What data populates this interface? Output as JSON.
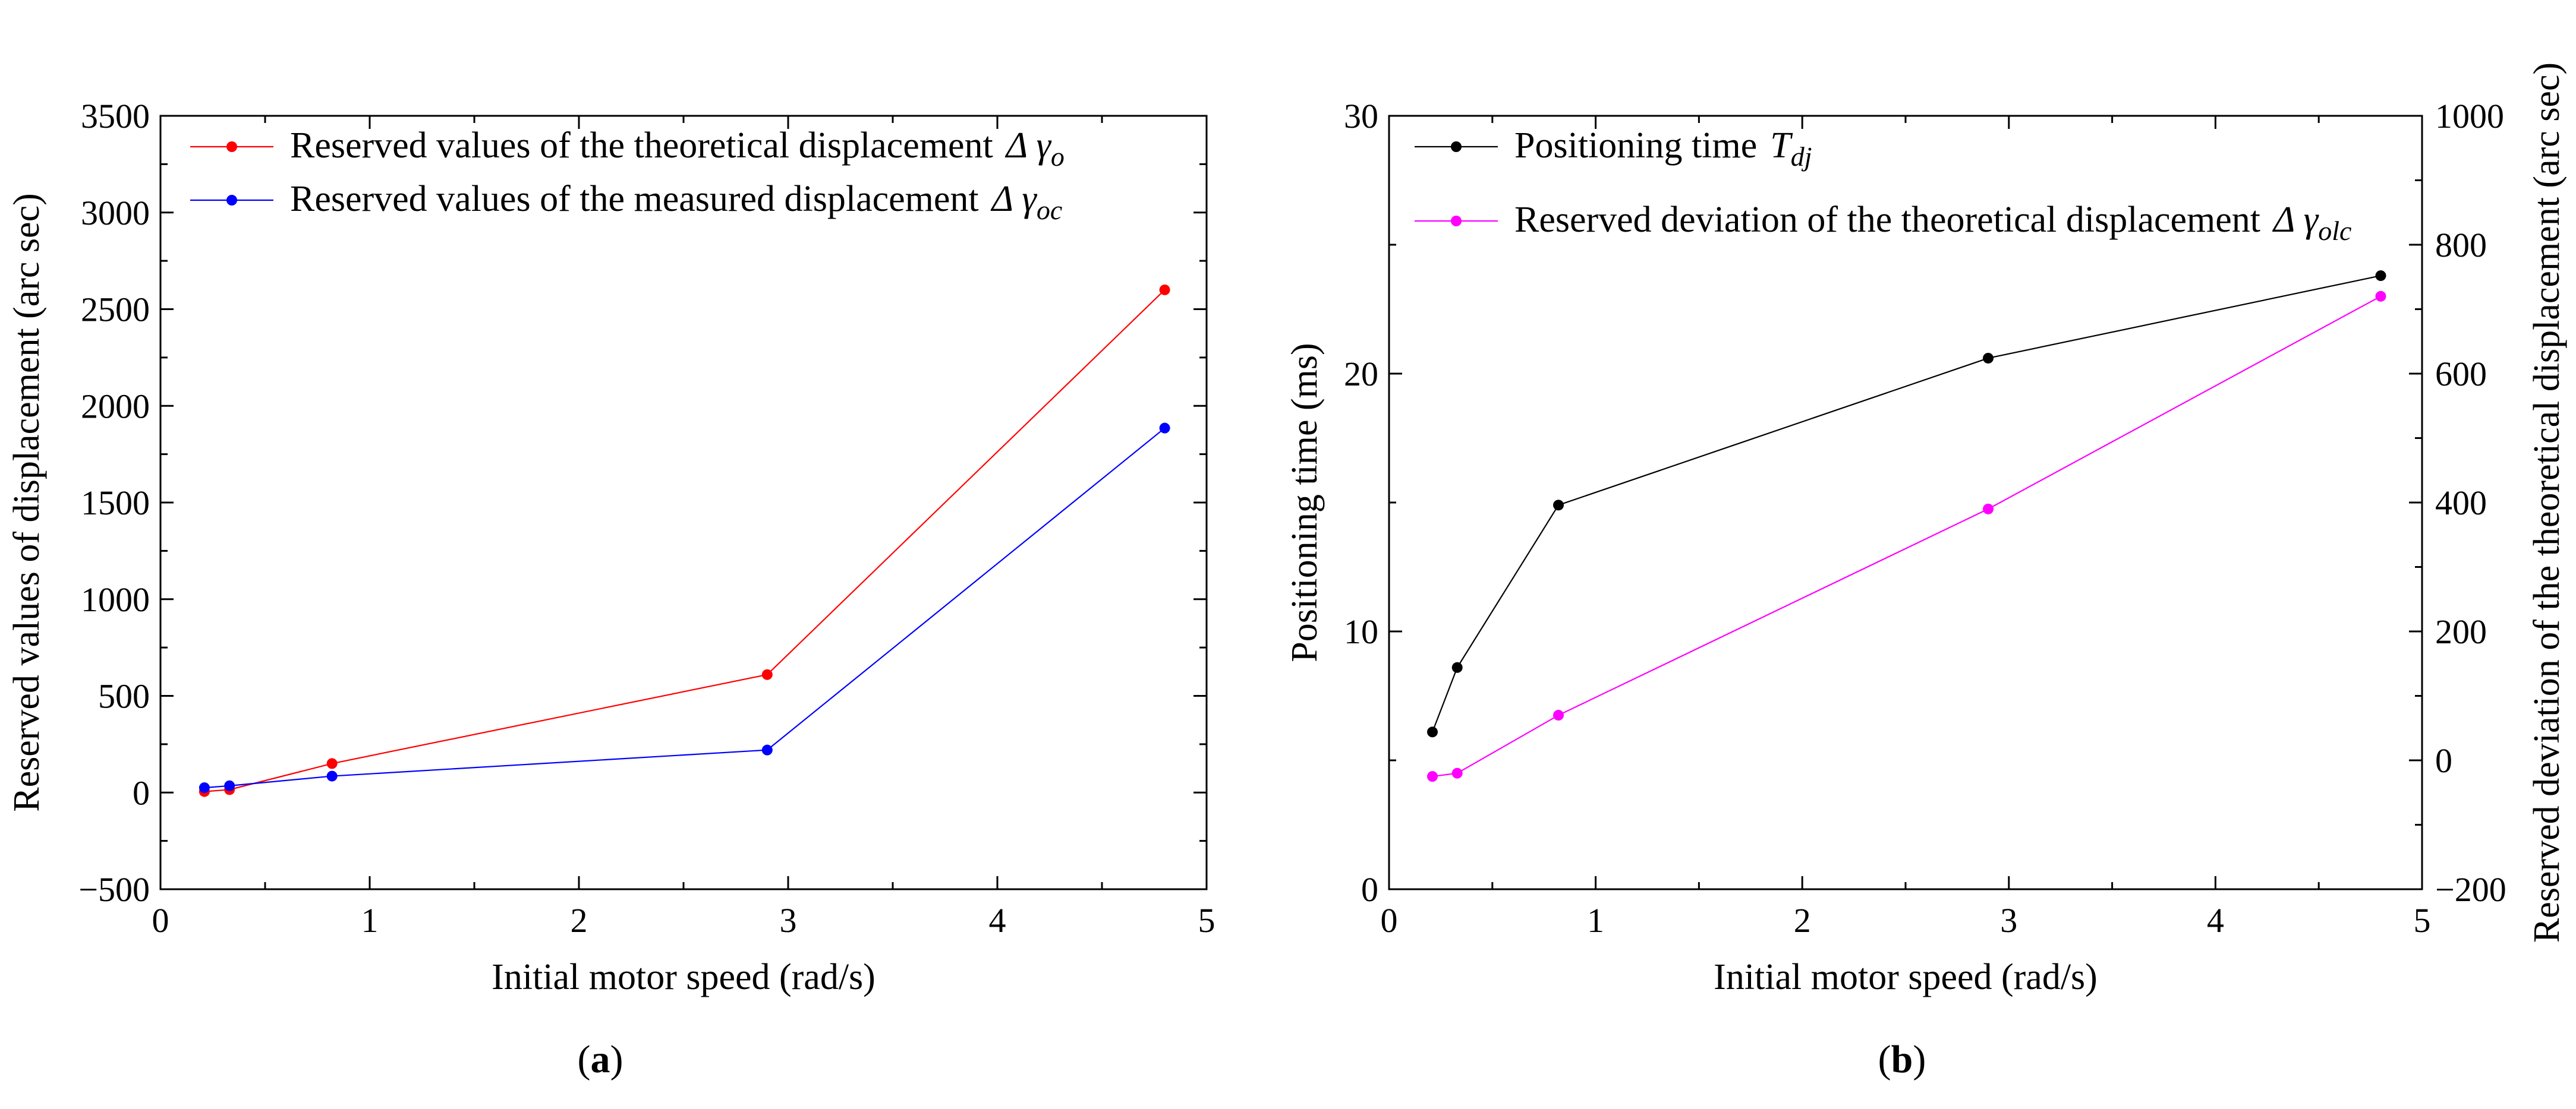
{
  "chart_data": [
    {
      "type": "line",
      "panel": "a",
      "caption": "a",
      "xlabel": "Initial motor speed (rad/s)",
      "ylabel": "Reserved values of displacement (arc sec)",
      "xlim": [
        0,
        5
      ],
      "ylim": [
        -500,
        3500
      ],
      "xticks": [
        0,
        1,
        2,
        3,
        4,
        5
      ],
      "yticks": [
        -500,
        0,
        500,
        1000,
        1500,
        2000,
        2500,
        3000,
        3500
      ],
      "x": [
        0.21,
        0.33,
        0.82,
        2.9,
        4.8
      ],
      "series": [
        {
          "name": "Reserved values of the theoretical displacement",
          "symbol": "Δ γ",
          "subscript": "o",
          "color": "#ff0000",
          "values": [
            5,
            15,
            150,
            610,
            2600
          ]
        },
        {
          "name": "Reserved values of the measured displacement",
          "symbol": "Δ γ",
          "subscript": "oc",
          "color": "#0000ff",
          "values": [
            25,
            35,
            85,
            220,
            1885
          ]
        }
      ],
      "legend": "top-left",
      "grid": false
    },
    {
      "type": "line",
      "panel": "b",
      "caption": "b",
      "xlabel": "Initial motor speed (rad/s)",
      "ylabel": "Positioning time (ms)",
      "y2label": "Reserved deviation of the theoretical displacement (arc sec)",
      "xlim": [
        0,
        5
      ],
      "ylim": [
        0,
        30
      ],
      "y2lim": [
        -200,
        1000
      ],
      "xticks": [
        0,
        1,
        2,
        3,
        4,
        5
      ],
      "yticks": [
        0,
        10,
        20,
        30
      ],
      "y2ticks": [
        -200,
        0,
        200,
        400,
        600,
        800,
        1000
      ],
      "x": [
        0.21,
        0.33,
        0.82,
        2.9,
        4.8
      ],
      "series": [
        {
          "name": "Positioning time",
          "symbol": "T",
          "subscript": "dj",
          "axis": "left",
          "color": "#000000",
          "values": [
            6.1,
            8.6,
            14.9,
            20.6,
            23.8
          ]
        },
        {
          "name": "Reserved deviation of the theoretical displacement",
          "symbol": "Δ γ",
          "subscript": "olc",
          "axis": "right",
          "color": "#ff00ff",
          "values": [
            -25,
            -20,
            70,
            390,
            720
          ]
        }
      ],
      "legend": "top-left",
      "grid": false
    }
  ]
}
